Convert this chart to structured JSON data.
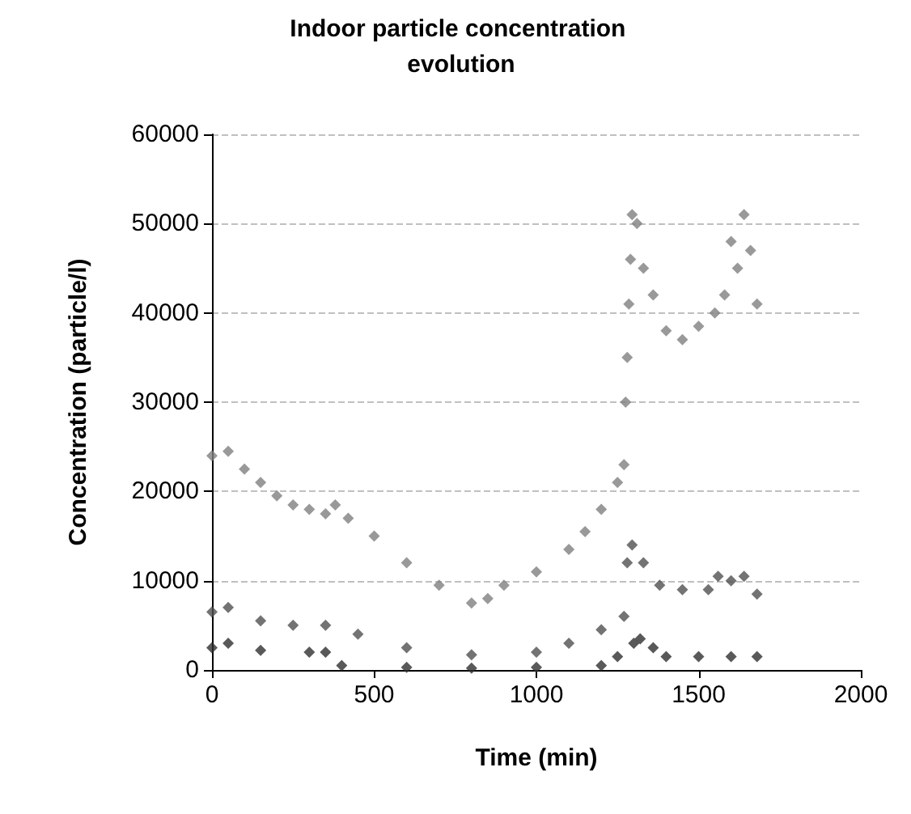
{
  "chart_data": {
    "type": "scatter",
    "title": "Indoor particle concentration evolution",
    "xlabel": "Time (min)",
    "ylabel": "Concentration (particle/l)",
    "xlim": [
      0,
      2000
    ],
    "xticks": [
      0,
      500,
      1000,
      1500,
      2000
    ],
    "ylim": [
      0,
      60000
    ],
    "yticks": [
      0,
      10000,
      20000,
      30000,
      40000,
      50000,
      60000
    ],
    "grid": "y",
    "marker": "diamond",
    "series": [
      {
        "color": "#808080",
        "x": [
          0,
          50,
          100,
          150,
          200,
          250,
          300,
          350,
          380,
          420,
          500,
          600,
          700,
          800,
          850,
          900,
          1000,
          1100,
          1150,
          1200,
          1250,
          1270,
          1275,
          1280,
          1285,
          1290,
          1295,
          1310,
          1330,
          1360,
          1400,
          1450,
          1500,
          1550,
          1580,
          1600,
          1620,
          1640,
          1660,
          1680
        ],
        "values": [
          24000,
          24500,
          22500,
          21000,
          19500,
          18500,
          18000,
          17500,
          18500,
          17000,
          15000,
          12000,
          9500,
          7500,
          8000,
          9500,
          11000,
          13500,
          15500,
          18000,
          21000,
          23000,
          30000,
          35000,
          41000,
          46000,
          51000,
          50000,
          45000,
          42000,
          38000,
          37000,
          38500,
          40000,
          42000,
          48000,
          45000,
          51000,
          47000,
          41000
        ]
      },
      {
        "color": "#505050",
        "x": [
          0,
          50,
          150,
          250,
          350,
          450,
          600,
          800,
          1000,
          1100,
          1200,
          1270,
          1280,
          1295,
          1330,
          1380,
          1450,
          1530,
          1560,
          1600,
          1640,
          1680
        ],
        "values": [
          6500,
          7000,
          5500,
          5000,
          5000,
          4000,
          2500,
          1700,
          2000,
          3000,
          4500,
          6000,
          12000,
          14000,
          12000,
          9500,
          9000,
          9000,
          10500,
          10000,
          10500,
          8500
        ]
      },
      {
        "color": "#303030",
        "x": [
          0,
          50,
          150,
          300,
          350,
          400,
          600,
          800,
          1000,
          1200,
          1250,
          1300,
          1320,
          1360,
          1400,
          1500,
          1600,
          1680
        ],
        "values": [
          2500,
          3000,
          2200,
          2000,
          2000,
          500,
          300,
          200,
          300,
          500,
          1500,
          3000,
          3500,
          2500,
          1500,
          1500,
          1500,
          1500
        ]
      }
    ]
  }
}
